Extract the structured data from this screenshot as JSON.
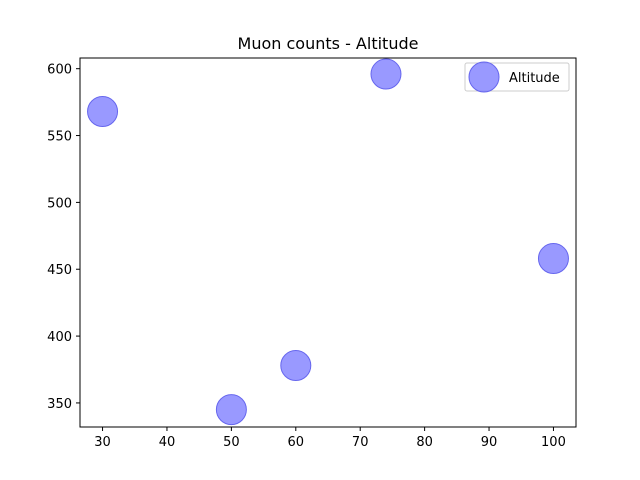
{
  "chart_data": {
    "type": "scatter",
    "title": "Muon counts - Altitude",
    "xlabel": "",
    "ylabel": "",
    "xlim": [
      26.5,
      103.5
    ],
    "ylim": [
      332,
      608
    ],
    "xticks": [
      30,
      40,
      50,
      60,
      70,
      80,
      90,
      100
    ],
    "yticks": [
      350,
      400,
      450,
      500,
      550,
      600
    ],
    "grid": false,
    "legend_position": "top-right",
    "series": [
      {
        "name": "Altitude",
        "color": "#7f7fff",
        "edge_color": "#6666ee",
        "points": [
          {
            "x": 30,
            "y": 568
          },
          {
            "x": 50,
            "y": 345
          },
          {
            "x": 60,
            "y": 378
          },
          {
            "x": 74,
            "y": 596
          },
          {
            "x": 100,
            "y": 458
          }
        ]
      }
    ]
  }
}
